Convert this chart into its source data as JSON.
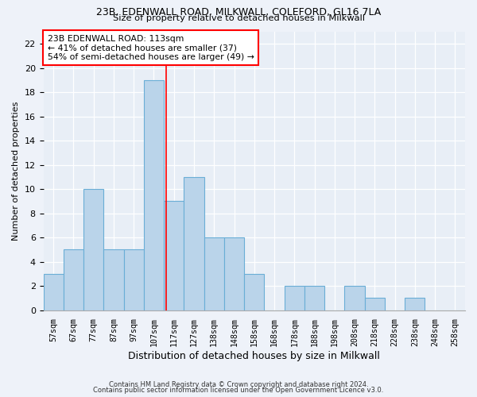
{
  "title1": "23B, EDENWALL ROAD, MILKWALL, COLEFORD, GL16 7LA",
  "title2": "Size of property relative to detached houses in Milkwall",
  "xlabel": "Distribution of detached houses by size in Milkwall",
  "ylabel": "Number of detached properties",
  "bin_labels": [
    "57sqm",
    "67sqm",
    "77sqm",
    "87sqm",
    "97sqm",
    "107sqm",
    "117sqm",
    "127sqm",
    "138sqm",
    "148sqm",
    "158sqm",
    "168sqm",
    "178sqm",
    "188sqm",
    "198sqm",
    "208sqm",
    "218sqm",
    "228sqm",
    "238sqm",
    "248sqm",
    "258sqm"
  ],
  "bar_heights": [
    3,
    5,
    10,
    5,
    5,
    19,
    9,
    11,
    6,
    6,
    3,
    0,
    2,
    2,
    0,
    2,
    1,
    0,
    1,
    0,
    0
  ],
  "bar_color": "#bad4ea",
  "bar_edge_color": "#6aaed6",
  "vline_x_index": 5.6,
  "vline_color": "red",
  "annotation_text": "23B EDENWALL ROAD: 113sqm\n← 41% of detached houses are smaller (37)\n54% of semi-detached houses are larger (49) →",
  "annotation_box_color": "white",
  "annotation_box_edge": "red",
  "ylim_max": 23,
  "yticks": [
    0,
    2,
    4,
    6,
    8,
    10,
    12,
    14,
    16,
    18,
    20,
    22
  ],
  "footnote1": "Contains HM Land Registry data © Crown copyright and database right 2024.",
  "footnote2": "Contains public sector information licensed under the Open Government Licence v3.0.",
  "bg_color": "#eef2f9",
  "plot_bg_color": "#e8eef6"
}
